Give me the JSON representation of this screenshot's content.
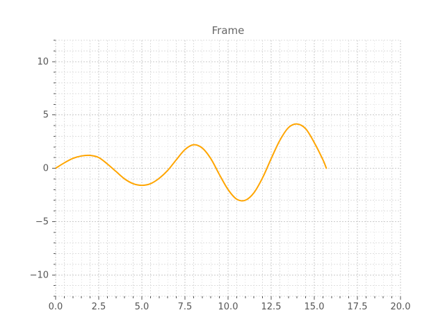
{
  "chart_data": {
    "type": "line",
    "title": "Frame",
    "xlabel": "",
    "ylabel": "",
    "xlim": [
      0,
      20
    ],
    "ylim": [
      -12,
      12
    ],
    "x_ticks": [
      0,
      2.5,
      5,
      7.5,
      10,
      12.5,
      15,
      17.5,
      20
    ],
    "x_tick_labels": [
      "0.0",
      "2.5",
      "5.0",
      "7.5",
      "10.0",
      "12.5",
      "15.0",
      "17.5",
      "20.0"
    ],
    "y_ticks": [
      -10,
      -5,
      0,
      5,
      10
    ],
    "y_tick_labels": [
      "−10",
      "−5",
      "0",
      "5",
      "10"
    ],
    "grid": true,
    "series": [
      {
        "color": "#ffa500",
        "x": [
          0,
          0.5,
          1,
          1.5,
          2,
          2.5,
          3,
          3.5,
          4,
          4.5,
          5,
          5.5,
          6,
          6.5,
          7,
          7.5,
          8,
          8.5,
          9,
          9.5,
          10,
          10.5,
          11,
          11.5,
          12,
          12.5,
          13,
          13.5,
          14,
          14.5,
          15,
          15.5,
          15.7
        ],
        "y": [
          0,
          0.5,
          0.92,
          1.15,
          1.2,
          1.0,
          0.4,
          -0.3,
          -1.0,
          -1.45,
          -1.6,
          -1.45,
          -0.95,
          -0.2,
          0.8,
          1.75,
          2.2,
          1.9,
          0.9,
          -0.6,
          -2.0,
          -2.9,
          -3.0,
          -2.3,
          -0.9,
          0.9,
          2.6,
          3.8,
          4.15,
          3.7,
          2.4,
          0.8,
          0.0
        ]
      }
    ]
  }
}
